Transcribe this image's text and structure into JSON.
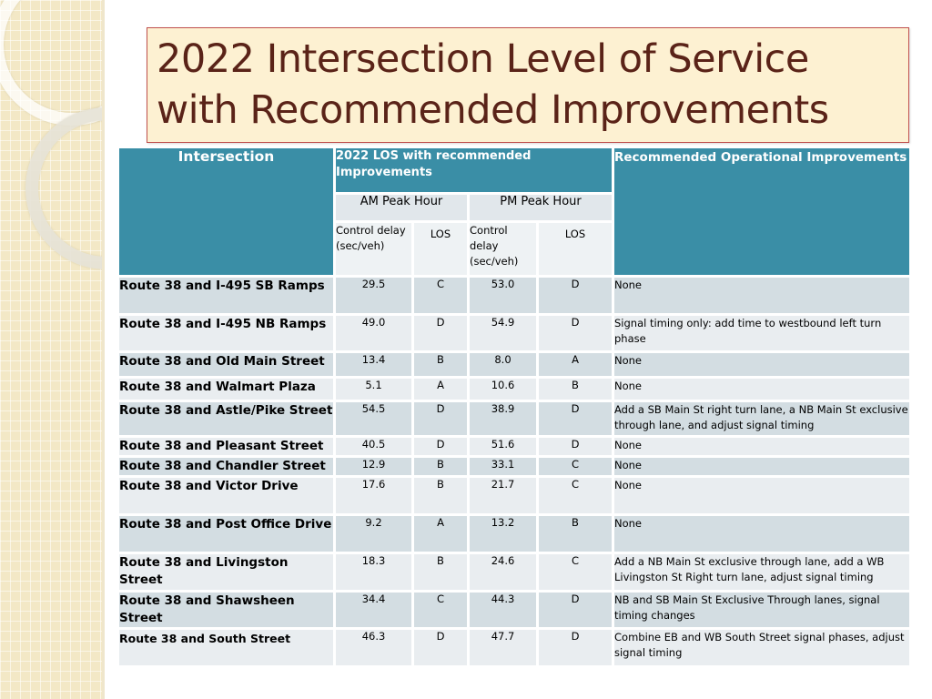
{
  "title": {
    "line1": "2022 Intersection Level of Service",
    "line2": "with Recommended Improvements"
  },
  "table": {
    "header": {
      "intersection": "Intersection",
      "los_group": "2022 LOS with recommended Improvements",
      "recommended": "Recommended Operational Improvements",
      "am_peak": "AM Peak Hour",
      "pm_peak": "PM Peak Hour",
      "am_delay": "Control delay (sec/veh)",
      "am_los": "LOS",
      "pm_delay": "Control delay (sec/veh)",
      "pm_los": "LOS"
    },
    "rows": [
      {
        "name": "Route 38 and I-495 SB Ramps",
        "am_delay": "29.5",
        "am_los": "C",
        "pm_delay": "53.0",
        "pm_los": "D",
        "rec": "None"
      },
      {
        "name": "Route 38 and I-495 NB Ramps",
        "am_delay": "49.0",
        "am_los": "D",
        "pm_delay": "54.9",
        "pm_los": "D",
        "rec": "Signal timing only: add time to westbound left turn phase"
      },
      {
        "name": "Route 38 and Old Main Street",
        "am_delay": "13.4",
        "am_los": "B",
        "pm_delay": "8.0",
        "pm_los": "A",
        "rec": "None"
      },
      {
        "name": "Route 38 and Walmart Plaza",
        "am_delay": "5.1",
        "am_los": "A",
        "pm_delay": "10.6",
        "pm_los": "B",
        "rec": "None"
      },
      {
        "name": "Route 38 and Astle/Pike Street",
        "am_delay": "54.5",
        "am_los": "D",
        "pm_delay": "38.9",
        "pm_los": "D",
        "rec": "Add a SB Main St right turn lane, a NB Main St exclusive through lane,  and adjust signal timing"
      },
      {
        "name": "Route 38 and Pleasant Street",
        "am_delay": "40.5",
        "am_los": "D",
        "pm_delay": "51.6",
        "pm_los": "D",
        "rec": "None"
      },
      {
        "name": "Route 38 and Chandler Street",
        "am_delay": "12.9",
        "am_los": "B",
        "pm_delay": "33.1",
        "pm_los": "C",
        "rec": "None"
      },
      {
        "name": "Route 38 and Victor Drive",
        "am_delay": "17.6",
        "am_los": "B",
        "pm_delay": "21.7",
        "pm_los": "C",
        "rec": "None"
      },
      {
        "name": "Route 38 and Post Office Drive",
        "am_delay": "9.2",
        "am_los": "A",
        "pm_delay": "13.2",
        "pm_los": "B",
        "rec": "None"
      },
      {
        "name": "Route 38 and Livingston Street",
        "am_delay": "18.3",
        "am_los": "B",
        "pm_delay": "24.6",
        "pm_los": "C",
        "rec": "Add a NB Main St exclusive through lane, add a WB Livingston St Right turn lane,  adjust signal timing"
      },
      {
        "name": "Route 38 and Shawsheen Street",
        "am_delay": "34.4",
        "am_los": "C",
        "pm_delay": "44.3",
        "pm_los": "D",
        "rec": "NB and SB Main St Exclusive Through lanes, signal timing changes"
      },
      {
        "name": "Route 38 and South Street",
        "am_delay": "46.3",
        "am_los": "D",
        "pm_delay": "47.7",
        "pm_los": "D",
        "rec": "Combine EB and WB South Street signal  phases, adjust signal timing"
      }
    ]
  },
  "colors": {
    "header": "#3a8ea6",
    "title_text": "#5a2318",
    "title_bg": "#fdf1d2",
    "title_border": "#c0504d"
  }
}
